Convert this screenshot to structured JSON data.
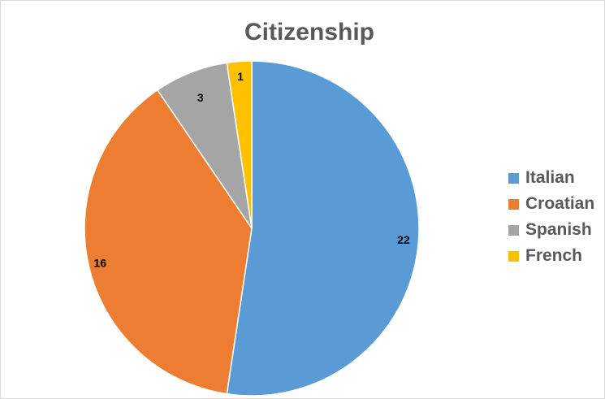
{
  "chart_data": {
    "type": "pie",
    "title": "Citizenship",
    "categories": [
      "Italian",
      "Croatian",
      "Spanish",
      "French"
    ],
    "values": [
      22,
      16,
      3,
      1
    ],
    "colors": [
      "#5b9bd5",
      "#ed7d31",
      "#a5a5a5",
      "#ffc000"
    ],
    "data_labels": [
      "22",
      "16",
      "3",
      "1"
    ],
    "legend_position": "right",
    "start_angle": "top, clockwise"
  }
}
